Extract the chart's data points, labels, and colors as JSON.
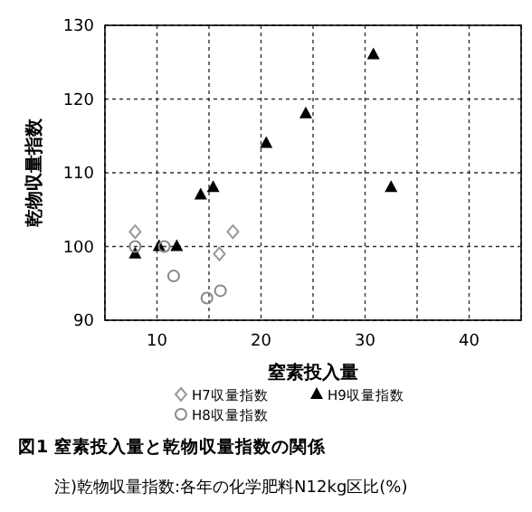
{
  "chart_data": {
    "type": "scatter",
    "title": "図1 窒素投入量と乾物収量指数の関係",
    "xlabel": "窒素投入量",
    "ylabel": "乾物収量指数",
    "annotations": [
      "注)乾物収量指数:各年の化学肥料N12kg区比(%)"
    ],
    "xlim": [
      5,
      45
    ],
    "xticks": [
      {
        "value": 5,
        "label": null
      },
      10,
      {
        "value": 15,
        "label": null
      },
      20,
      {
        "value": 25,
        "label": null
      },
      30,
      {
        "value": 35,
        "label": null
      },
      40,
      {
        "value": 45,
        "label": null
      }
    ],
    "ylim": [
      90,
      130
    ],
    "yticks": [
      90,
      100,
      110,
      120,
      130
    ],
    "grid": true,
    "legend": "bottom",
    "series": [
      {
        "name": "H7収量指数",
        "color": "#999999",
        "marker": "diamond",
        "x": [
          7.9,
          17.3,
          16.0
        ],
        "values": [
          102,
          102,
          99
        ]
      },
      {
        "name": "H9収量指数",
        "color": "#000000",
        "marker": "triangle",
        "x": [
          7.9,
          10.2,
          11.9,
          14.2,
          15.4,
          20.5,
          24.3,
          30.8,
          32.5
        ],
        "values": [
          99,
          100,
          100,
          107,
          108,
          114,
          118,
          126,
          108
        ]
      },
      {
        "name": "H8収量指数",
        "color": "#888888",
        "marker": "circle",
        "x": [
          7.9,
          10.7,
          11.6,
          14.8,
          16.1
        ],
        "values": [
          100,
          100,
          96,
          93,
          94
        ]
      }
    ]
  }
}
